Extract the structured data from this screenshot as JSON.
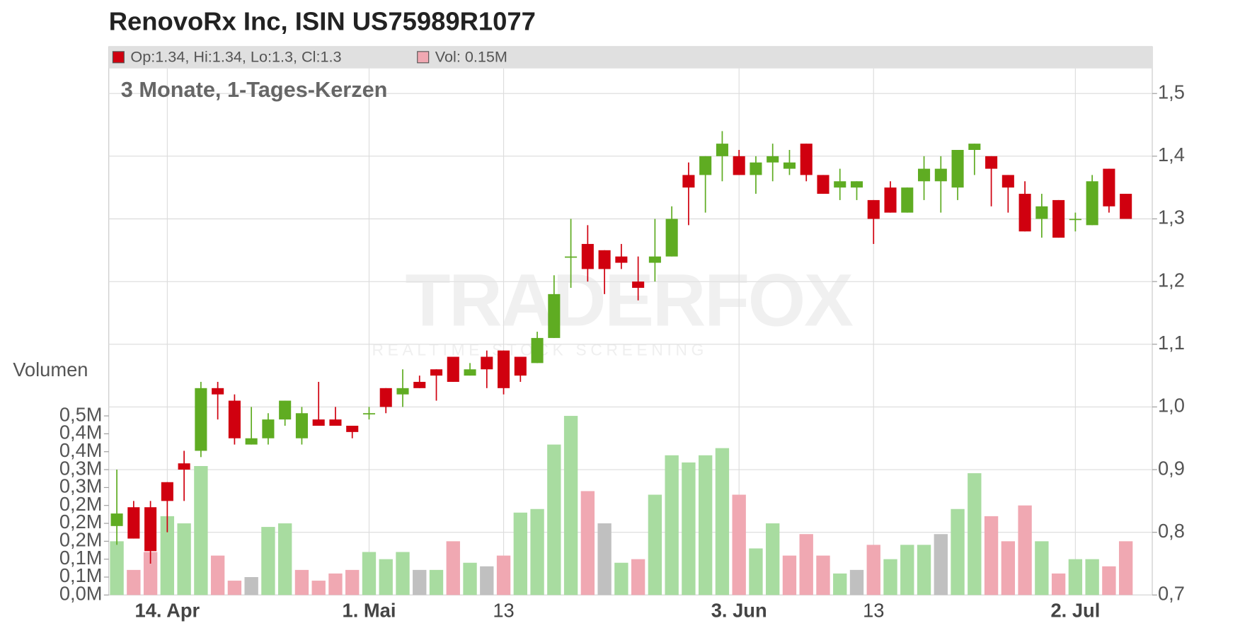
{
  "chart_data": {
    "type": "candlestick",
    "title": "RenovoRx Inc, ISIN US75989R1077",
    "subtitle": "3 Monate, 1-Tages-Kerzen",
    "legend": {
      "ohlc": "Op:1.34, Hi:1.34, Lo:1.3, Cl:1.3",
      "volume": "Vol: 0.15M"
    },
    "volume_axis_label": "Volumen",
    "watermark": {
      "brand": "TRADERFOX",
      "tagline": "REALTIME STOCK SCREENING"
    },
    "categories": [
      null,
      null,
      null,
      "14. Apr",
      null,
      null,
      null,
      null,
      null,
      null,
      null,
      null,
      null,
      null,
      null,
      "1. Mai",
      null,
      null,
      null,
      null,
      null,
      null,
      null,
      "13",
      null,
      null,
      null,
      null,
      null,
      null,
      null,
      null,
      null,
      null,
      null,
      null,
      null,
      "3. Jun",
      null,
      null,
      null,
      null,
      null,
      null,
      null,
      "13",
      null,
      null,
      null,
      null,
      null,
      null,
      null,
      null,
      null,
      null,
      null,
      "2. Jul",
      null,
      null,
      null
    ],
    "open": [
      0.81,
      0.84,
      0.84,
      0.88,
      0.91,
      0.93,
      1.03,
      1.01,
      0.94,
      0.95,
      0.98,
      0.95,
      0.98,
      0.98,
      0.97,
      0.99,
      1.03,
      1.02,
      1.04,
      1.06,
      1.08,
      1.05,
      1.08,
      1.09,
      1.08,
      1.07,
      1.11,
      1.24,
      1.26,
      1.25,
      1.24,
      1.2,
      1.23,
      1.24,
      1.37,
      1.37,
      1.4,
      1.4,
      1.37,
      1.39,
      1.38,
      1.42,
      1.37,
      1.35,
      1.35,
      1.33,
      1.35,
      1.31,
      1.36,
      1.36,
      1.35,
      1.41,
      1.4,
      1.37,
      1.34,
      1.3,
      1.33,
      1.3,
      1.29,
      1.38,
      1.34
    ],
    "high": [
      0.9,
      0.85,
      0.85,
      0.88,
      0.93,
      1.04,
      1.04,
      1.02,
      1.0,
      0.99,
      1.01,
      1.0,
      1.04,
      1.0,
      0.97,
      1.0,
      1.03,
      1.06,
      1.05,
      1.06,
      1.08,
      1.07,
      1.09,
      1.09,
      1.08,
      1.12,
      1.21,
      1.3,
      1.29,
      1.25,
      1.26,
      1.24,
      1.3,
      1.32,
      1.39,
      1.4,
      1.44,
      1.41,
      1.4,
      1.42,
      1.41,
      1.42,
      1.37,
      1.38,
      1.36,
      1.33,
      1.36,
      1.35,
      1.4,
      1.4,
      1.41,
      1.42,
      1.4,
      1.37,
      1.36,
      1.34,
      1.33,
      1.31,
      1.37,
      1.38,
      1.34
    ],
    "low": [
      0.78,
      0.79,
      0.75,
      0.8,
      0.85,
      0.92,
      0.98,
      0.94,
      0.94,
      0.94,
      0.97,
      0.94,
      0.97,
      0.97,
      0.95,
      0.98,
      0.99,
      1.0,
      1.03,
      1.01,
      1.04,
      1.05,
      1.03,
      1.02,
      1.04,
      1.07,
      1.11,
      1.19,
      1.2,
      1.18,
      1.22,
      1.17,
      1.2,
      1.24,
      1.29,
      1.31,
      1.36,
      1.37,
      1.34,
      1.36,
      1.37,
      1.36,
      1.34,
      1.33,
      1.33,
      1.26,
      1.31,
      1.31,
      1.33,
      1.31,
      1.33,
      1.37,
      1.32,
      1.31,
      1.28,
      1.27,
      1.27,
      1.28,
      1.29,
      1.31,
      1.3
    ],
    "close": [
      0.83,
      0.79,
      0.77,
      0.85,
      0.9,
      1.03,
      1.02,
      0.95,
      0.95,
      0.98,
      1.01,
      0.99,
      0.97,
      0.97,
      0.96,
      0.99,
      1.0,
      1.03,
      1.03,
      1.05,
      1.04,
      1.06,
      1.06,
      1.03,
      1.05,
      1.11,
      1.18,
      1.24,
      1.22,
      1.22,
      1.23,
      1.19,
      1.24,
      1.3,
      1.35,
      1.4,
      1.42,
      1.37,
      1.39,
      1.4,
      1.39,
      1.37,
      1.34,
      1.36,
      1.36,
      1.3,
      1.31,
      1.35,
      1.38,
      1.38,
      1.41,
      1.42,
      1.38,
      1.35,
      1.28,
      1.32,
      1.27,
      1.3,
      1.36,
      1.32,
      1.3
    ],
    "volume": [
      0.15,
      0.07,
      0.12,
      0.22,
      0.2,
      0.36,
      0.11,
      0.04,
      0.05,
      0.19,
      0.2,
      0.07,
      0.04,
      0.06,
      0.07,
      0.12,
      0.1,
      0.12,
      0.07,
      0.07,
      0.15,
      0.09,
      0.08,
      0.11,
      0.23,
      0.24,
      0.42,
      0.5,
      0.29,
      0.2,
      0.09,
      0.1,
      0.28,
      0.39,
      0.37,
      0.39,
      0.41,
      0.28,
      0.13,
      0.2,
      0.11,
      0.17,
      0.11,
      0.06,
      0.07,
      0.14,
      0.1,
      0.14,
      0.14,
      0.17,
      0.24,
      0.34,
      0.22,
      0.15,
      0.25,
      0.15,
      0.06,
      0.1,
      0.1,
      0.08,
      0.15
    ],
    "volume_colors": [
      "#a8dca0",
      "#f0a8b2",
      "#f0a8b2",
      "#a8dca0",
      "#a8dca0",
      "#a8dca0",
      "#f0a8b2",
      "#f0a8b2",
      "#c0c0c0",
      "#a8dca0",
      "#a8dca0",
      "#f0a8b2",
      "#f0a8b2",
      "#f0a8b2",
      "#f0a8b2",
      "#a8dca0",
      "#a8dca0",
      "#a8dca0",
      "#c0c0c0",
      "#a8dca0",
      "#f0a8b2",
      "#a8dca0",
      "#c0c0c0",
      "#f0a8b2",
      "#a8dca0",
      "#a8dca0",
      "#a8dca0",
      "#a8dca0",
      "#f0a8b2",
      "#c0c0c0",
      "#a8dca0",
      "#f0a8b2",
      "#a8dca0",
      "#a8dca0",
      "#a8dca0",
      "#a8dca0",
      "#a8dca0",
      "#f0a8b2",
      "#a8dca0",
      "#a8dca0",
      "#f0a8b2",
      "#f0a8b2",
      "#f0a8b2",
      "#a8dca0",
      "#c0c0c0",
      "#f0a8b2",
      "#a8dca0",
      "#a8dca0",
      "#a8dca0",
      "#c0c0c0",
      "#a8dca0",
      "#a8dca0",
      "#f0a8b2",
      "#f0a8b2",
      "#f0a8b2",
      "#a8dca0",
      "#f0a8b2",
      "#a8dca0",
      "#a8dca0",
      "#f0a8b2",
      "#f0a8b2"
    ],
    "up_color": "#5fac22",
    "down_color": "#d0000f",
    "legend_colors": {
      "ohlc": "#d0000f",
      "volume": "#f0a8b2"
    },
    "ylim": [
      0.7,
      1.54
    ],
    "yticks": [
      {
        "value": 0.7,
        "label": "0,7"
      },
      {
        "value": 0.8,
        "label": "0,8"
      },
      {
        "value": 0.9,
        "label": "0,9"
      },
      {
        "value": 1.0,
        "label": "1,0"
      },
      {
        "value": 1.1,
        "label": "1,1"
      },
      {
        "value": 1.2,
        "label": "1,2"
      },
      {
        "value": 1.3,
        "label": "1,3"
      },
      {
        "value": 1.4,
        "label": "1,4"
      },
      {
        "value": 1.5,
        "label": "1,5"
      }
    ],
    "y2lim": [
      0,
      1.47
    ],
    "y2ticks": [
      {
        "value": 0,
        "label": "0,0M"
      },
      {
        "value": 0.05,
        "label": "0,1M"
      },
      {
        "value": 0.1,
        "label": "0,1M"
      },
      {
        "value": 0.15,
        "label": "0,2M"
      },
      {
        "value": 0.2,
        "label": "0,2M"
      },
      {
        "value": 0.25,
        "label": "0,2M"
      },
      {
        "value": 0.3,
        "label": "0,3M"
      },
      {
        "value": 0.35,
        "label": "0,3M"
      },
      {
        "value": 0.4,
        "label": "0,4M"
      },
      {
        "value": 0.45,
        "label": "0,4M"
      },
      {
        "value": 0.5,
        "label": "0,5M"
      }
    ],
    "grid": true
  }
}
